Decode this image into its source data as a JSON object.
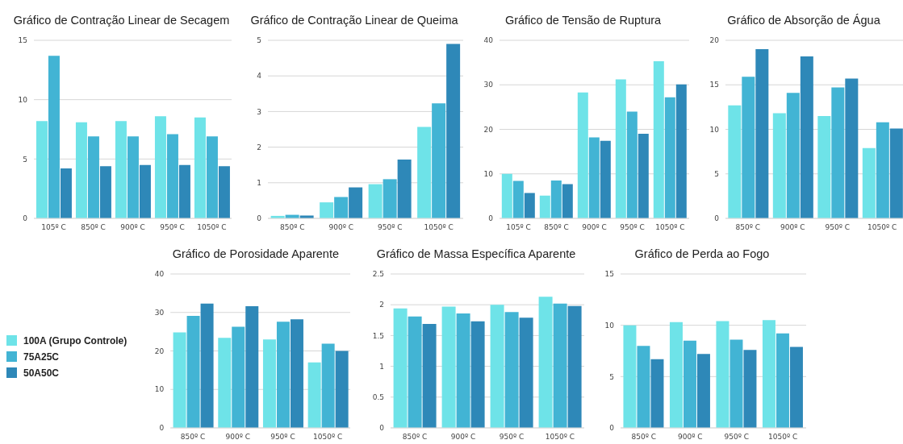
{
  "chart_data": [
    {
      "type": "bar",
      "title": "Gráfico de Contração Linear de Secagem",
      "categories": [
        "105º C",
        "850º C",
        "900º C",
        "950º C",
        "1050º C"
      ],
      "series": [
        {
          "color": "#6ee3e8",
          "values": [
            8.2,
            8.1,
            8.2,
            8.6,
            8.5
          ]
        },
        {
          "color": "#42b4d4",
          "values": [
            13.7,
            6.9,
            6.9,
            7.1,
            6.9
          ]
        },
        {
          "color": "#2e88b8",
          "values": [
            4.2,
            4.4,
            4.5,
            4.5,
            4.4
          ]
        }
      ],
      "ylim": [
        0,
        15
      ],
      "yticks": [
        0,
        5,
        10,
        15
      ],
      "grid": "y",
      "legend": false
    },
    {
      "type": "bar",
      "title": "Gráfico de Contração Linear de Queima",
      "categories": [
        "850º C",
        "900º C",
        "950º C",
        "1050º C"
      ],
      "series": [
        {
          "color": "#6ee3e8",
          "values": [
            0.07,
            0.45,
            0.96,
            2.57
          ]
        },
        {
          "color": "#42b4d4",
          "values": [
            0.1,
            0.6,
            1.1,
            3.23
          ]
        },
        {
          "color": "#2e88b8",
          "values": [
            0.08,
            0.87,
            1.65,
            4.9
          ]
        }
      ],
      "ylim": [
        0,
        5
      ],
      "yticks": [
        0,
        1,
        2,
        3,
        4,
        5
      ],
      "grid": "y",
      "legend": false
    },
    {
      "type": "bar",
      "title": "Gráfico de Tensão de Ruptura",
      "categories": [
        "105º C",
        "850º C",
        "900º C",
        "950º C",
        "1050º C"
      ],
      "series": [
        {
          "color": "#6ee3e8",
          "values": [
            10,
            5.1,
            28.3,
            31.2,
            35.3
          ]
        },
        {
          "color": "#42b4d4",
          "values": [
            8.4,
            8.5,
            18.2,
            24,
            27.2
          ]
        },
        {
          "color": "#2e88b8",
          "values": [
            5.7,
            7.7,
            17.4,
            19,
            30.1
          ]
        }
      ],
      "ylim": [
        0,
        40
      ],
      "yticks": [
        0,
        10,
        20,
        30,
        40
      ],
      "grid": "y",
      "legend": false
    },
    {
      "type": "bar",
      "title": "Gráfico de Absorção de Água",
      "categories": [
        "850º C",
        "900º C",
        "950º C",
        "1050º C"
      ],
      "series": [
        {
          "color": "#6ee3e8",
          "values": [
            12.7,
            11.8,
            11.5,
            7.9
          ]
        },
        {
          "color": "#42b4d4",
          "values": [
            15.9,
            14.1,
            14.7,
            10.8
          ]
        },
        {
          "color": "#2e88b8",
          "values": [
            19,
            18.2,
            15.7,
            10.1
          ]
        }
      ],
      "ylim": [
        0,
        20
      ],
      "yticks": [
        0,
        5,
        10,
        15,
        20
      ],
      "grid": "y",
      "legend": false
    },
    {
      "type": "bar",
      "title": "Gráfico de Porosidade Aparente",
      "categories": [
        "850º C",
        "900º C",
        "950º C",
        "1050º C"
      ],
      "series": [
        {
          "name": "100A (Grupo Controle)",
          "color": "#6ee3e8",
          "values": [
            24.8,
            23.4,
            23,
            17
          ]
        },
        {
          "name": "75A25C",
          "color": "#42b4d4",
          "values": [
            29.1,
            26.3,
            27.6,
            21.9
          ]
        },
        {
          "name": "50A50C",
          "color": "#2e88b8",
          "values": [
            32.3,
            31.6,
            28.2,
            20
          ]
        }
      ],
      "ylim": [
        0,
        40
      ],
      "yticks": [
        0,
        10,
        20,
        30,
        40
      ],
      "grid": "y",
      "legend": "left"
    },
    {
      "type": "bar",
      "title": "Gráfico de Massa Específica Aparente",
      "categories": [
        "850º C",
        "900º C",
        "950º C",
        "1050º C"
      ],
      "series": [
        {
          "color": "#6ee3e8",
          "values": [
            1.94,
            1.97,
            2.0,
            2.13
          ]
        },
        {
          "color": "#42b4d4",
          "values": [
            1.81,
            1.86,
            1.88,
            2.02
          ]
        },
        {
          "color": "#2e88b8",
          "values": [
            1.69,
            1.73,
            1.79,
            1.98
          ]
        }
      ],
      "ylim": [
        0,
        2.5
      ],
      "yticks": [
        0,
        0.5,
        1,
        1.5,
        2,
        2.5
      ],
      "grid": "y",
      "legend": false
    },
    {
      "type": "bar",
      "title": "Gráfico de Perda ao Fogo",
      "categories": [
        "850º C",
        "900º C",
        "950º C",
        "1050º C"
      ],
      "series": [
        {
          "color": "#6ee3e8",
          "values": [
            10,
            10.3,
            10.4,
            10.5
          ]
        },
        {
          "color": "#42b4d4",
          "values": [
            8,
            8.5,
            8.6,
            9.2
          ]
        },
        {
          "color": "#2e88b8",
          "values": [
            6.7,
            7.2,
            7.6,
            7.9
          ]
        }
      ],
      "ylim": [
        0,
        15
      ],
      "yticks": [
        0,
        5,
        10,
        15
      ],
      "grid": "y",
      "legend": false
    }
  ]
}
